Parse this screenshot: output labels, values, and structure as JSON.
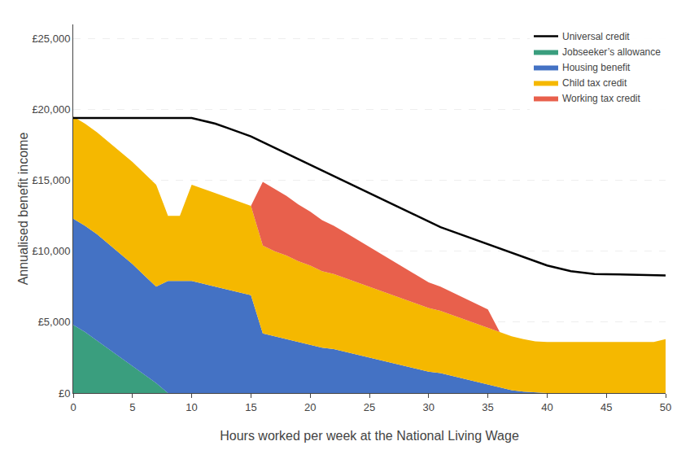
{
  "chart_data": {
    "type": "area",
    "stacked": true,
    "xlabel": "Hours worked per week at the National Living Wage",
    "ylabel": "Annualised benefit income",
    "x": [
      0,
      1,
      2,
      3,
      4,
      5,
      6,
      7,
      8,
      9,
      10,
      11,
      12,
      13,
      14,
      15,
      16,
      17,
      18,
      19,
      20,
      21,
      22,
      23,
      24,
      25,
      26,
      27,
      28,
      29,
      30,
      31,
      32,
      33,
      34,
      35,
      36,
      37,
      38,
      39,
      40,
      41,
      42,
      43,
      44,
      45,
      46,
      47,
      48,
      49,
      50
    ],
    "series": [
      {
        "name": "Jobseeker’s allowance",
        "color": "#3a9e7e",
        "type": "area",
        "values": [
          4800,
          4300,
          3700,
          3100,
          2500,
          1900,
          1300,
          700,
          0,
          0,
          0,
          0,
          0,
          0,
          0,
          0,
          0,
          0,
          0,
          0,
          0,
          0,
          0,
          0,
          0,
          0,
          0,
          0,
          0,
          0,
          0,
          0,
          0,
          0,
          0,
          0,
          0,
          0,
          0,
          0,
          0,
          0,
          0,
          0,
          0,
          0,
          0,
          0,
          0,
          0,
          0
        ]
      },
      {
        "name": "Housing benefit",
        "color": "#4472c4",
        "type": "area",
        "values": [
          7500,
          7500,
          7500,
          7400,
          7300,
          7200,
          7000,
          6800,
          7900,
          7900,
          7900,
          7700,
          7500,
          7300,
          7100,
          6900,
          4200,
          4000,
          3800,
          3600,
          3400,
          3200,
          3100,
          2900,
          2700,
          2500,
          2300,
          2100,
          1900,
          1700,
          1500,
          1400,
          1200,
          1000,
          800,
          600,
          400,
          200,
          100,
          50,
          0,
          0,
          0,
          0,
          0,
          0,
          0,
          0,
          0,
          0,
          0
        ]
      },
      {
        "name": "Child tax credit",
        "color": "#f5b800",
        "type": "area",
        "values": [
          7200,
          7200,
          7200,
          7200,
          7200,
          7200,
          7200,
          7200,
          4600,
          4600,
          6800,
          6700,
          6600,
          6500,
          6400,
          6300,
          6200,
          6000,
          5900,
          5700,
          5600,
          5400,
          5300,
          5200,
          5100,
          5000,
          4900,
          4800,
          4700,
          4600,
          4500,
          4400,
          4300,
          4200,
          4100,
          4000,
          3900,
          3800,
          3700,
          3600,
          3600,
          3600,
          3600,
          3600,
          3600,
          3600,
          3600,
          3600,
          3600,
          3600,
          3800
        ]
      },
      {
        "name": "Working tax credit",
        "color": "#e8604c",
        "type": "area",
        "values": [
          0,
          0,
          0,
          0,
          0,
          0,
          0,
          0,
          0,
          0,
          0,
          0,
          0,
          0,
          0,
          0,
          4500,
          4400,
          4200,
          4000,
          3800,
          3600,
          3400,
          3200,
          3000,
          2800,
          2600,
          2400,
          2200,
          2000,
          1800,
          1700,
          1600,
          1500,
          1400,
          1300,
          0,
          0,
          0,
          0,
          0,
          0,
          0,
          0,
          0,
          0,
          0,
          0,
          0,
          0,
          0
        ]
      },
      {
        "name": "Universal credit",
        "color": "#000000",
        "type": "line",
        "values": [
          19400,
          19400,
          19400,
          19400,
          19400,
          19400,
          19400,
          19400,
          19400,
          19400,
          19400,
          19200,
          19000,
          18700,
          18400,
          18100,
          17700,
          17300,
          16900,
          16500,
          16100,
          15700,
          15300,
          14900,
          14500,
          14100,
          13700,
          13300,
          12900,
          12500,
          12100,
          11700,
          11400,
          11100,
          10800,
          10500,
          10200,
          9900,
          9600,
          9300,
          9000,
          8800,
          8600,
          8500,
          8400,
          8380,
          8360,
          8340,
          8320,
          8310,
          8300
        ]
      }
    ],
    "xlim": [
      0,
      50
    ],
    "xticks": [
      0,
      5,
      10,
      15,
      20,
      25,
      30,
      35,
      40,
      45,
      50
    ],
    "ylim": [
      0,
      26000
    ],
    "yticks": [
      {
        "value": 0,
        "label": "£0"
      },
      {
        "value": 5000,
        "label": "£5,000"
      },
      {
        "value": 10000,
        "label": "£10,000"
      },
      {
        "value": 15000,
        "label": "£15,000"
      },
      {
        "value": 20000,
        "label": "£20,000"
      },
      {
        "value": 25000,
        "label": "£25,000"
      }
    ],
    "grid": "y",
    "legend": "upper right"
  }
}
